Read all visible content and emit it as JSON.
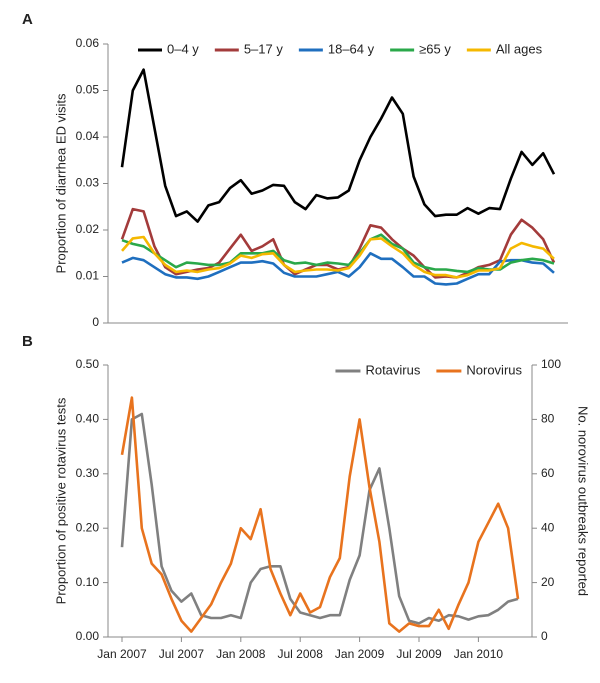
{
  "chart_data": [
    {
      "type": "line",
      "panel_label": "A",
      "ylabel": "Proportion of diarrhea ED visits",
      "ylim": [
        0,
        0.06
      ],
      "yticks": [
        0,
        0.01,
        0.02,
        0.03,
        0.04,
        0.05,
        0.06
      ],
      "legend": "top",
      "series": [
        {
          "name": "0–4 y",
          "color": "#000000",
          "values": [
            0.0335,
            0.05,
            0.0545,
            0.042,
            0.0295,
            0.023,
            0.024,
            0.0218,
            0.0253,
            0.026,
            0.029,
            0.0307,
            0.0278,
            0.0285,
            0.0297,
            0.0295,
            0.026,
            0.0245,
            0.0275,
            0.0268,
            0.027,
            0.0285,
            0.035,
            0.04,
            0.044,
            0.0485,
            0.045,
            0.0315,
            0.0255,
            0.023,
            0.0233,
            0.0233,
            0.0247,
            0.0235,
            0.0247,
            0.0245,
            0.031,
            0.0368,
            0.034,
            0.0365,
            0.032
          ]
        },
        {
          "name": "5–17 y",
          "color": "#a33b3b",
          "values": [
            0.018,
            0.0245,
            0.024,
            0.0165,
            0.012,
            0.0105,
            0.011,
            0.0115,
            0.0118,
            0.013,
            0.016,
            0.019,
            0.0155,
            0.0165,
            0.018,
            0.0125,
            0.0105,
            0.0115,
            0.0125,
            0.0125,
            0.0115,
            0.012,
            0.016,
            0.021,
            0.0205,
            0.018,
            0.016,
            0.0145,
            0.012,
            0.0098,
            0.01,
            0.0098,
            0.0108,
            0.012,
            0.0125,
            0.0135,
            0.019,
            0.0222,
            0.0205,
            0.018,
            0.013
          ]
        },
        {
          "name": "18–64 y",
          "color": "#1f6fbf",
          "values": [
            0.013,
            0.014,
            0.0135,
            0.012,
            0.0105,
            0.0098,
            0.0098,
            0.0095,
            0.01,
            0.011,
            0.012,
            0.013,
            0.013,
            0.0133,
            0.0128,
            0.0108,
            0.01,
            0.01,
            0.01,
            0.0105,
            0.011,
            0.01,
            0.012,
            0.015,
            0.0138,
            0.0138,
            0.012,
            0.01,
            0.01,
            0.0085,
            0.0083,
            0.0085,
            0.0095,
            0.0105,
            0.0105,
            0.0132,
            0.0135,
            0.0135,
            0.013,
            0.0128,
            0.0108
          ]
        },
        {
          "name": "≥65 y",
          "color": "#2aa84a",
          "values": [
            0.0178,
            0.017,
            0.0165,
            0.015,
            0.0135,
            0.012,
            0.013,
            0.0128,
            0.0125,
            0.0125,
            0.013,
            0.015,
            0.015,
            0.015,
            0.0155,
            0.0135,
            0.0128,
            0.013,
            0.0125,
            0.013,
            0.0128,
            0.0125,
            0.015,
            0.018,
            0.019,
            0.017,
            0.016,
            0.013,
            0.012,
            0.0115,
            0.0115,
            0.0112,
            0.011,
            0.0118,
            0.0115,
            0.0115,
            0.013,
            0.0135,
            0.0138,
            0.0135,
            0.0128
          ]
        },
        {
          "name": "All ages",
          "color": "#f5b800",
          "values": [
            0.0155,
            0.0182,
            0.0185,
            0.015,
            0.0125,
            0.011,
            0.0113,
            0.011,
            0.0115,
            0.0118,
            0.0128,
            0.0145,
            0.014,
            0.0148,
            0.015,
            0.0125,
            0.011,
            0.0113,
            0.0115,
            0.0115,
            0.0113,
            0.0118,
            0.0145,
            0.018,
            0.0182,
            0.0165,
            0.015,
            0.0125,
            0.011,
            0.0103,
            0.0103,
            0.0098,
            0.0103,
            0.0113,
            0.0113,
            0.0118,
            0.016,
            0.0172,
            0.0165,
            0.016,
            0.0138
          ]
        }
      ]
    },
    {
      "type": "line",
      "panel_label": "B",
      "ylabel": "Proportion of positive rotavirus tests",
      "y2label": "No. norovirus outbreaks reported",
      "categories": [
        "Jan 2007",
        null,
        null,
        null,
        null,
        null,
        "Jul 2007",
        null,
        null,
        null,
        null,
        null,
        "Jan 2008",
        null,
        null,
        null,
        null,
        null,
        "Jul 2008",
        null,
        null,
        null,
        null,
        null,
        "Jan 2009",
        null,
        null,
        null,
        null,
        null,
        "Jul 2009",
        null,
        null,
        null,
        null,
        null,
        "Jan 2010",
        null,
        null,
        null,
        null
      ],
      "ylim": [
        0,
        0.5
      ],
      "yticks": [
        {
          "value": 0,
          "label": "0.00"
        },
        {
          "value": 0.1,
          "label": "0.10"
        },
        {
          "value": 0.2,
          "label": "0.20"
        },
        {
          "value": 0.3,
          "label": "0.30"
        },
        {
          "value": 0.4,
          "label": "0.40"
        },
        {
          "value": 0.5,
          "label": "0.50"
        }
      ],
      "y2lim": [
        0,
        100
      ],
      "y2ticks": [
        0,
        20,
        40,
        60,
        80,
        100
      ],
      "legend": "top-right",
      "series": [
        {
          "name": "Rotavirus",
          "color": "#808080",
          "values": [
            0.165,
            0.4,
            0.41,
            0.28,
            0.13,
            0.085,
            0.065,
            0.08,
            0.04,
            0.035,
            0.035,
            0.04,
            0.035,
            0.1,
            0.125,
            0.13,
            0.13,
            0.07,
            0.045,
            0.04,
            0.035,
            0.04,
            0.04,
            0.105,
            0.15,
            0.27,
            0.31,
            0.2,
            0.075,
            0.03,
            0.025,
            0.035,
            0.03,
            0.04,
            0.038,
            0.032,
            0.038,
            0.04,
            0.05,
            0.065,
            0.07
          ]
        },
        {
          "name": "Norovirus",
          "color": "#e8731e",
          "axis": "y2",
          "values": [
            67,
            88,
            40,
            27,
            23,
            14,
            6,
            2,
            7,
            12,
            20,
            27,
            40,
            36,
            47,
            25,
            16,
            8,
            16,
            9,
            11,
            22,
            29,
            59,
            80,
            55,
            35,
            5,
            2,
            5,
            4,
            4,
            10,
            3,
            12,
            20,
            35,
            42,
            49,
            40,
            14
          ]
        }
      ]
    }
  ]
}
